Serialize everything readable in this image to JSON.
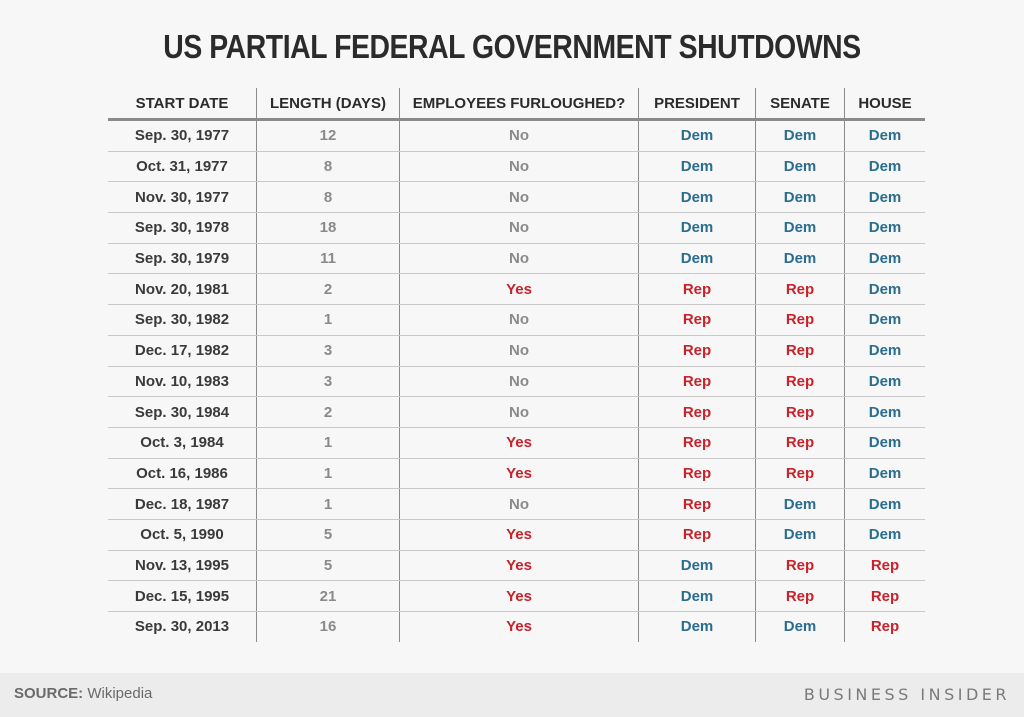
{
  "title": "US PARTIAL FEDERAL GOVERNMENT SHUTDOWNS",
  "table": {
    "headers": [
      "START DATE",
      "LENGTH (DAYS)",
      "EMPLOYEES FURLOUGHED?",
      "PRESIDENT",
      "SENATE",
      "HOUSE"
    ],
    "rows": [
      [
        "Sep. 30, 1977",
        "12",
        "No",
        "Dem",
        "Dem",
        "Dem"
      ],
      [
        "Oct. 31, 1977",
        "8",
        "No",
        "Dem",
        "Dem",
        "Dem"
      ],
      [
        "Nov. 30, 1977",
        "8",
        "No",
        "Dem",
        "Dem",
        "Dem"
      ],
      [
        "Sep. 30, 1978",
        "18",
        "No",
        "Dem",
        "Dem",
        "Dem"
      ],
      [
        "Sep. 30, 1979",
        "11",
        "No",
        "Dem",
        "Dem",
        "Dem"
      ],
      [
        "Nov. 20, 1981",
        "2",
        "Yes",
        "Rep",
        "Rep",
        "Dem"
      ],
      [
        "Sep. 30, 1982",
        "1",
        "No",
        "Rep",
        "Rep",
        "Dem"
      ],
      [
        "Dec. 17, 1982",
        "3",
        "No",
        "Rep",
        "Rep",
        "Dem"
      ],
      [
        "Nov. 10, 1983",
        "3",
        "No",
        "Rep",
        "Rep",
        "Dem"
      ],
      [
        "Sep. 30, 1984",
        "2",
        "No",
        "Rep",
        "Rep",
        "Dem"
      ],
      [
        "Oct. 3, 1984",
        "1",
        "Yes",
        "Rep",
        "Rep",
        "Dem"
      ],
      [
        "Oct. 16, 1986",
        "1",
        "Yes",
        "Rep",
        "Rep",
        "Dem"
      ],
      [
        "Dec. 18, 1987",
        "1",
        "No",
        "Rep",
        "Dem",
        "Dem"
      ],
      [
        "Oct. 5, 1990",
        "5",
        "Yes",
        "Rep",
        "Dem",
        "Dem"
      ],
      [
        "Nov. 13, 1995",
        "5",
        "Yes",
        "Dem",
        "Rep",
        "Rep"
      ],
      [
        "Dec. 15, 1995",
        "21",
        "Yes",
        "Dem",
        "Rep",
        "Rep"
      ],
      [
        "Sep. 30, 2013",
        "16",
        "Yes",
        "Dem",
        "Dem",
        "Rep"
      ]
    ]
  },
  "colors": {
    "title": "#2b2b2b",
    "dem": "#2a6d8f",
    "rep": "#c8222b",
    "yes": "#c8222b",
    "no": "#8a8a8a",
    "background": "#f7f7f7",
    "footer_background": "#ececec"
  },
  "footer": {
    "source_label": "SOURCE:",
    "source_value": "Wikipedia",
    "brand": "BUSINESS INSIDER"
  },
  "chart_data": {
    "type": "table",
    "title": "US PARTIAL FEDERAL GOVERNMENT SHUTDOWNS",
    "columns": [
      "START DATE",
      "LENGTH (DAYS)",
      "EMPLOYEES FURLOUGHED?",
      "PRESIDENT",
      "SENATE",
      "HOUSE"
    ],
    "rows": [
      [
        "Sep. 30, 1977",
        12,
        "No",
        "Dem",
        "Dem",
        "Dem"
      ],
      [
        "Oct. 31, 1977",
        8,
        "No",
        "Dem",
        "Dem",
        "Dem"
      ],
      [
        "Nov. 30, 1977",
        8,
        "No",
        "Dem",
        "Dem",
        "Dem"
      ],
      [
        "Sep. 30, 1978",
        18,
        "No",
        "Dem",
        "Dem",
        "Dem"
      ],
      [
        "Sep. 30, 1979",
        11,
        "No",
        "Dem",
        "Dem",
        "Dem"
      ],
      [
        "Nov. 20, 1981",
        2,
        "Yes",
        "Rep",
        "Rep",
        "Dem"
      ],
      [
        "Sep. 30, 1982",
        1,
        "No",
        "Rep",
        "Rep",
        "Dem"
      ],
      [
        "Dec. 17, 1982",
        3,
        "No",
        "Rep",
        "Rep",
        "Dem"
      ],
      [
        "Nov. 10, 1983",
        3,
        "No",
        "Rep",
        "Rep",
        "Dem"
      ],
      [
        "Sep. 30, 1984",
        2,
        "No",
        "Rep",
        "Rep",
        "Dem"
      ],
      [
        "Oct. 3, 1984",
        1,
        "Yes",
        "Rep",
        "Rep",
        "Dem"
      ],
      [
        "Oct. 16, 1986",
        1,
        "Yes",
        "Rep",
        "Rep",
        "Dem"
      ],
      [
        "Dec. 18, 1987",
        1,
        "No",
        "Rep",
        "Dem",
        "Dem"
      ],
      [
        "Oct. 5, 1990",
        5,
        "Yes",
        "Rep",
        "Dem",
        "Dem"
      ],
      [
        "Nov. 13, 1995",
        5,
        "Yes",
        "Dem",
        "Rep",
        "Rep"
      ],
      [
        "Dec. 15, 1995",
        21,
        "Yes",
        "Dem",
        "Rep",
        "Rep"
      ],
      [
        "Sep. 30, 2013",
        16,
        "Yes",
        "Dem",
        "Dem",
        "Rep"
      ]
    ],
    "source": "Wikipedia"
  }
}
